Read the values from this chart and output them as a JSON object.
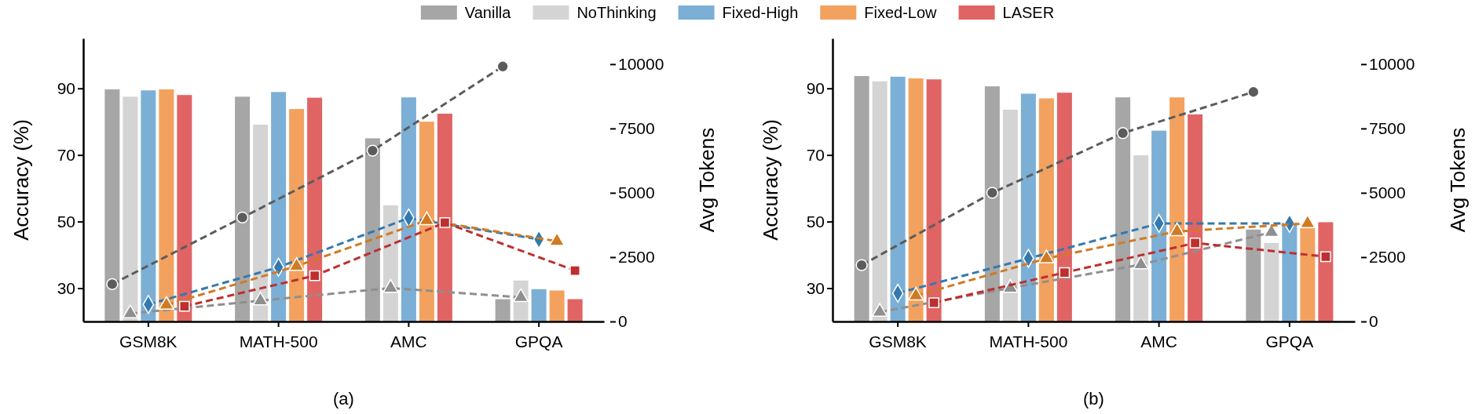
{
  "chart_data": [
    {
      "type": "bar",
      "title": "(a)",
      "ylabel": "Accuracy (%)",
      "y2label": "Avg Tokens",
      "legend": "top",
      "categories": [
        "GSM8K",
        "MATH-500",
        "AMC",
        "GPQA"
      ],
      "ylim": [
        20,
        105
      ],
      "yticks": [
        30,
        50,
        70,
        90
      ],
      "y2lim": [
        0,
        11000
      ],
      "y2ticks": [
        0,
        2500,
        5000,
        7500,
        10000
      ],
      "series": [
        {
          "name": "Vanilla",
          "color": "#a6a6a6",
          "values": [
            89.7,
            87.5,
            75.0,
            26.7
          ]
        },
        {
          "name": "NoThinking",
          "color": "#d4d4d4",
          "values": [
            87.5,
            79.1,
            54.9,
            32.3
          ]
        },
        {
          "name": "Fixed-High",
          "color": "#7bafd6",
          "values": [
            89.4,
            88.9,
            87.3,
            29.7
          ]
        },
        {
          "name": "Fixed-Low",
          "color": "#f2a25e",
          "values": [
            89.7,
            83.8,
            80.0,
            29.3
          ]
        },
        {
          "name": "LASER",
          "color": "#e06464",
          "values": [
            88.0,
            87.2,
            82.4,
            26.7
          ]
        },
        {
          "type": "line",
          "axis": "y2",
          "color": "#5c5c5c",
          "marker": "circle",
          "line_style": "dashed",
          "values": [
            1450,
            4040,
            6640,
            9910
          ]
        },
        {
          "type": "line",
          "axis": "y2",
          "color": "#8f8f8f",
          "marker": "triangle",
          "line_style": "dashed",
          "values": [
            310,
            810,
            1300,
            940
          ]
        },
        {
          "type": "line",
          "axis": "y2",
          "color": "#3479ad",
          "marker": "diamond",
          "line_style": "dashed",
          "values": [
            660,
            2110,
            4020,
            3190
          ]
        },
        {
          "type": "line",
          "axis": "y2",
          "color": "#d07a22",
          "marker": "triangle",
          "line_style": "dashed",
          "values": [
            640,
            2150,
            3930,
            3120
          ]
        },
        {
          "type": "line",
          "axis": "y2",
          "color": "#be2f2f",
          "marker": "square",
          "line_style": "dashed",
          "values": [
            590,
            1780,
            3840,
            1980
          ]
        }
      ]
    },
    {
      "type": "bar",
      "title": "(b)",
      "ylabel": "Accuracy (%)",
      "y2label": "Avg Tokens",
      "categories": [
        "GSM8K",
        "MATH-500",
        "AMC",
        "GPQA"
      ],
      "ylim": [
        20,
        105
      ],
      "yticks": [
        30,
        50,
        70,
        90
      ],
      "y2lim": [
        0,
        11000
      ],
      "y2ticks": [
        0,
        2500,
        5000,
        7500,
        10000
      ],
      "series": [
        {
          "color": "#a6a6a6",
          "values": [
            93.7,
            90.6,
            87.3,
            47.6
          ]
        },
        {
          "color": "#d4d4d4",
          "values": [
            92.1,
            83.6,
            69.9,
            43.6
          ]
        },
        {
          "color": "#7bafd6",
          "values": [
            93.5,
            88.4,
            77.3,
            49.7
          ]
        },
        {
          "color": "#f2a25e",
          "values": [
            93.0,
            87.0,
            87.3,
            48.0
          ]
        },
        {
          "color": "#e06464",
          "values": [
            92.7,
            88.7,
            82.2,
            49.8
          ]
        },
        {
          "type": "line",
          "axis": "y2",
          "color": "#5c5c5c",
          "marker": "circle",
          "line_style": "dashed",
          "values": [
            2190,
            5000,
            7320,
            8920
          ]
        },
        {
          "type": "line",
          "axis": "y2",
          "color": "#8f8f8f",
          "marker": "triangle",
          "line_style": "dashed",
          "values": [
            370,
            1300,
            2210,
            3470
          ]
        },
        {
          "type": "line",
          "axis": "y2",
          "color": "#3479ad",
          "marker": "diamond",
          "line_style": "dashed",
          "values": [
            1100,
            2450,
            3810,
            3810
          ]
        },
        {
          "type": "line",
          "axis": "y2",
          "color": "#d07a22",
          "marker": "triangle",
          "line_style": "dashed",
          "values": [
            1000,
            2450,
            3500,
            3810
          ]
        },
        {
          "type": "line",
          "axis": "y2",
          "color": "#be2f2f",
          "marker": "square",
          "line_style": "dashed",
          "values": [
            730,
            1900,
            3050,
            2520
          ]
        }
      ]
    }
  ]
}
